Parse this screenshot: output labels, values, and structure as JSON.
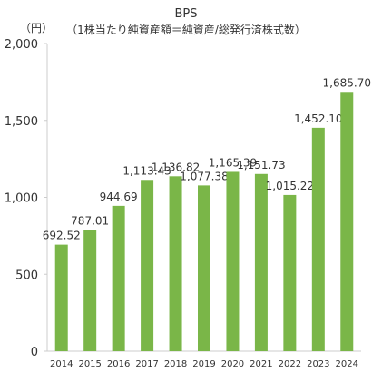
{
  "chart_data": {
    "type": "bar",
    "title": "BPS",
    "subtitle": "（1株当たり純資産額＝純資産/総発行済株式数）",
    "ylabel": "（円）",
    "categories": [
      "2014",
      "2015",
      "2016",
      "2017",
      "2018",
      "2019",
      "2020",
      "2021",
      "2022",
      "2023",
      "2024"
    ],
    "values": [
      692.52,
      787.01,
      944.69,
      1113.43,
      1136.82,
      1077.38,
      1165.39,
      1151.73,
      1015.22,
      1452.1,
      1685.7
    ],
    "value_labels": [
      "692.52",
      "787.01",
      "944.69",
      "1,113.43",
      "1,136.82",
      "1,077.38",
      "1,165.39",
      "1,151.73",
      "1,015.22",
      "1,452.10",
      "1,685.70"
    ],
    "ylim": [
      0,
      2000
    ],
    "yticks": [
      0,
      500,
      1000,
      1500,
      2000
    ],
    "ytick_labels": [
      "0",
      "500",
      "1,000",
      "1,500",
      "2,000"
    ],
    "grid": false,
    "bar_color": "#7ab648",
    "axis_color": "#cccccc"
  }
}
